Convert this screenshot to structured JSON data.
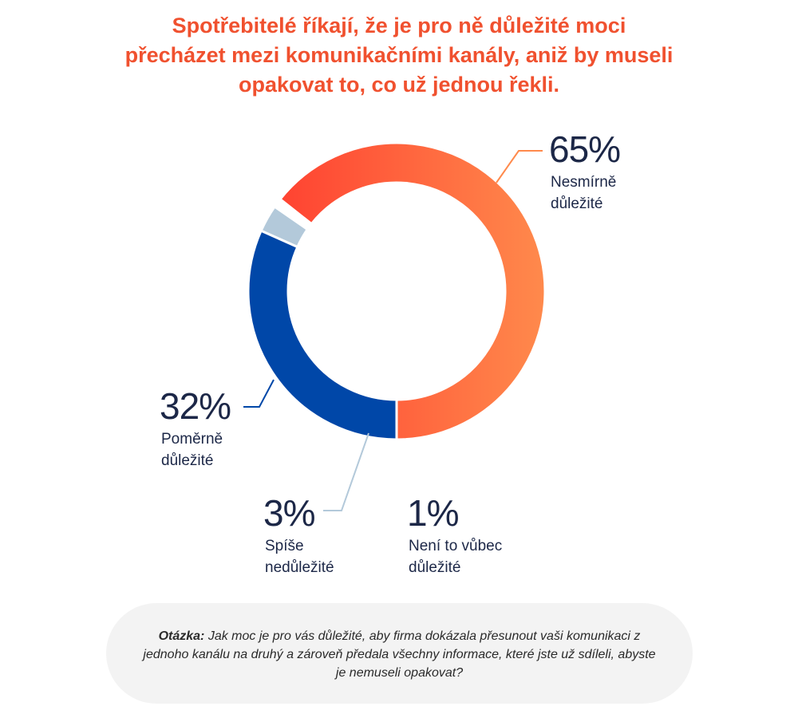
{
  "title": "Spotřebitelé říkají, že je pro ně důležité moci přecházet mezi komunikačními kanály, aniž by museli opakovat to, co už jednou řekli.",
  "question": {
    "label": "Otázka:",
    "text": "Jak moc je pro vás důležité, aby firma dokázala přesunout vaši komunikaci z jednoho kanálu na druhý a zároveň předala všechny informace, které jste už sdíleli, abyste je nemuseli opakovat?"
  },
  "colors": {
    "title": "#f0512f",
    "text": "#1c2747",
    "slice_1": "#ff3a2e",
    "slice_1_end": "#ff8a4c",
    "slice_2": "#0047a8",
    "slice_3": "#b3c9da",
    "slice_4": "#ffffff"
  },
  "chart_data": {
    "type": "pie",
    "donut": true,
    "categories": [
      "Nesmírně důležité",
      "Poměrně důležité",
      "Spíše nedůležité",
      "Není to vůbec důležité"
    ],
    "values": [
      65,
      32,
      3,
      1
    ],
    "data_labels": [
      "65%",
      "32%",
      "3%",
      "1%"
    ],
    "label_lines": [
      [
        "Nesmírně",
        "důležité"
      ],
      [
        "Poměrně",
        "důležité"
      ],
      [
        "Spíše",
        "nedůležité"
      ],
      [
        "Není to vůbec",
        "důležité"
      ]
    ]
  }
}
